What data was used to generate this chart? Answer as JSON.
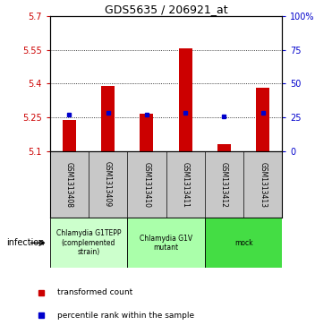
{
  "title": "GDS5635 / 206921_at",
  "samples": [
    "GSM1313408",
    "GSM1313409",
    "GSM1313410",
    "GSM1313411",
    "GSM1313412",
    "GSM1313413"
  ],
  "red_values": [
    5.237,
    5.39,
    5.268,
    5.558,
    5.133,
    5.38
  ],
  "blue_values": [
    5.262,
    5.271,
    5.262,
    5.271,
    5.253,
    5.271
  ],
  "baseline": 5.1,
  "ylim": [
    5.1,
    5.7
  ],
  "yticks_left": [
    5.1,
    5.25,
    5.4,
    5.55,
    5.7
  ],
  "yticks_right": [
    0,
    25,
    50,
    75,
    100
  ],
  "group_info": [
    {
      "start": 0,
      "end": 1,
      "label": "Chlamydia G1TEPP\n(complemented\nstrain)",
      "color": "#ccffcc"
    },
    {
      "start": 2,
      "end": 3,
      "label": "Chlamydia G1V\nmutant",
      "color": "#aaffaa"
    },
    {
      "start": 4,
      "end": 5,
      "label": "mock",
      "color": "#44dd44"
    }
  ],
  "infection_label": "infection",
  "legend_red": "transformed count",
  "legend_blue": "percentile rank within the sample",
  "bar_color": "#cc0000",
  "dot_color": "#0000cc",
  "bg_color": "#c8c8c8",
  "bar_width": 0.35,
  "left_tick_color": "#cc0000",
  "right_tick_color": "#0000cc",
  "title_fontsize": 9,
  "tick_fontsize": 7,
  "sample_fontsize": 5.5,
  "group_fontsize": 5.5,
  "legend_fontsize": 6.5
}
